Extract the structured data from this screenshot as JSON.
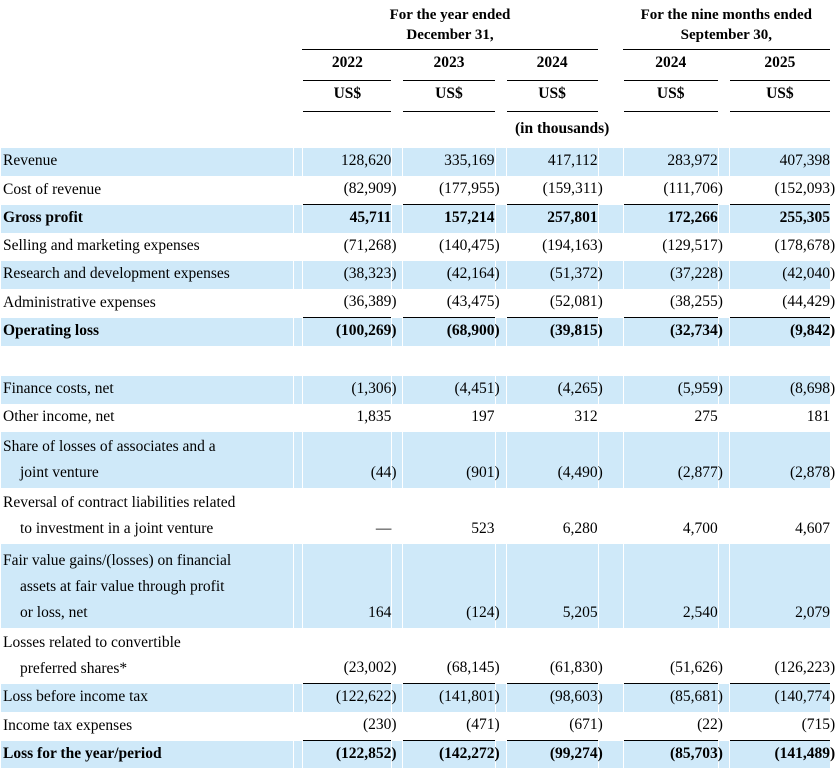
{
  "table": {
    "col_groups": [
      {
        "title": "For the year ended\nDecember 31,",
        "span": 3
      },
      {
        "title": "For the nine months ended\nSeptember 30,",
        "span": 2
      }
    ],
    "columns": [
      "2022",
      "2023",
      "2024",
      "2024",
      "2025"
    ],
    "unit_label": "US$",
    "scale_note": "(in thousands)",
    "colors": {
      "stripe_blue": "#cfe9f9",
      "text_black": "#000000",
      "rule_black": "#000000"
    },
    "rows": [
      {
        "label": "Revenue",
        "values": [
          "128,620",
          "335,169",
          "417,112",
          "283,972",
          "407,398"
        ],
        "stripe": true
      },
      {
        "label": "Cost of revenue",
        "values": [
          "(82,909)",
          "(177,955)",
          "(159,311)",
          "(111,706)",
          "(152,093)"
        ],
        "stripe": false,
        "rule_below": true
      },
      {
        "label": "Gross profit",
        "values": [
          "45,711",
          "157,214",
          "257,801",
          "172,266",
          "255,305"
        ],
        "stripe": true,
        "bold": true
      },
      {
        "label": "Selling and marketing expenses",
        "values": [
          "(71,268)",
          "(140,475)",
          "(194,163)",
          "(129,517)",
          "(178,678)"
        ],
        "stripe": false
      },
      {
        "label": "Research and development expenses",
        "values": [
          "(38,323)",
          "(42,164)",
          "(51,372)",
          "(37,228)",
          "(42,040)"
        ],
        "stripe": true
      },
      {
        "label": "Administrative expenses",
        "values": [
          "(36,389)",
          "(43,475)",
          "(52,081)",
          "(38,255)",
          "(44,429)"
        ],
        "stripe": false,
        "rule_below": true
      },
      {
        "label": "Operating loss",
        "values": [
          "(100,269)",
          "(68,900)",
          "(39,815)",
          "(32,734)",
          "(9,842)"
        ],
        "stripe": true,
        "bold": true
      },
      {
        "spacer": true
      },
      {
        "label": "Finance costs, net",
        "values": [
          "(1,306)",
          "(4,451)",
          "(4,265)",
          "(5,959)",
          "(8,698)"
        ],
        "stripe": true
      },
      {
        "label": "Other income, net",
        "values": [
          "1,835",
          "197",
          "312",
          "275",
          "181"
        ],
        "stripe": false
      },
      {
        "label": "Share of losses of associates and a\njoint venture",
        "values": [
          "(44)",
          "(901)",
          "(4,490)",
          "(2,877)",
          "(2,878)"
        ],
        "stripe": true
      },
      {
        "label": "Reversal of contract liabilities related\nto investment in a joint venture",
        "values": [
          "—",
          "523",
          "6,280",
          "4,700",
          "4,607"
        ],
        "stripe": false
      },
      {
        "label": "Fair value gains/(losses) on financial\nassets at fair value through profit\nor loss, net",
        "values": [
          "164",
          "(124)",
          "5,205",
          "2,540",
          "2,079"
        ],
        "stripe": true
      },
      {
        "label": "Losses related to convertible\npreferred shares*",
        "values": [
          "(23,002)",
          "(68,145)",
          "(61,830)",
          "(51,626)",
          "(126,223)"
        ],
        "stripe": false,
        "rule_below": true
      },
      {
        "label": "Loss before income tax",
        "values": [
          "(122,622)",
          "(141,801)",
          "(98,603)",
          "(85,681)",
          "(140,774)"
        ],
        "stripe": true
      },
      {
        "label": "Income tax expenses",
        "values": [
          "(230)",
          "(471)",
          "(671)",
          "(22)",
          "(715)"
        ],
        "stripe": false,
        "rule_below": true
      },
      {
        "label": "Loss for the year/period",
        "values": [
          "(122,852)",
          "(142,272)",
          "(99,274)",
          "(85,703)",
          "(141,489)"
        ],
        "stripe": true,
        "bold": true,
        "double_rule_below": true
      }
    ]
  }
}
